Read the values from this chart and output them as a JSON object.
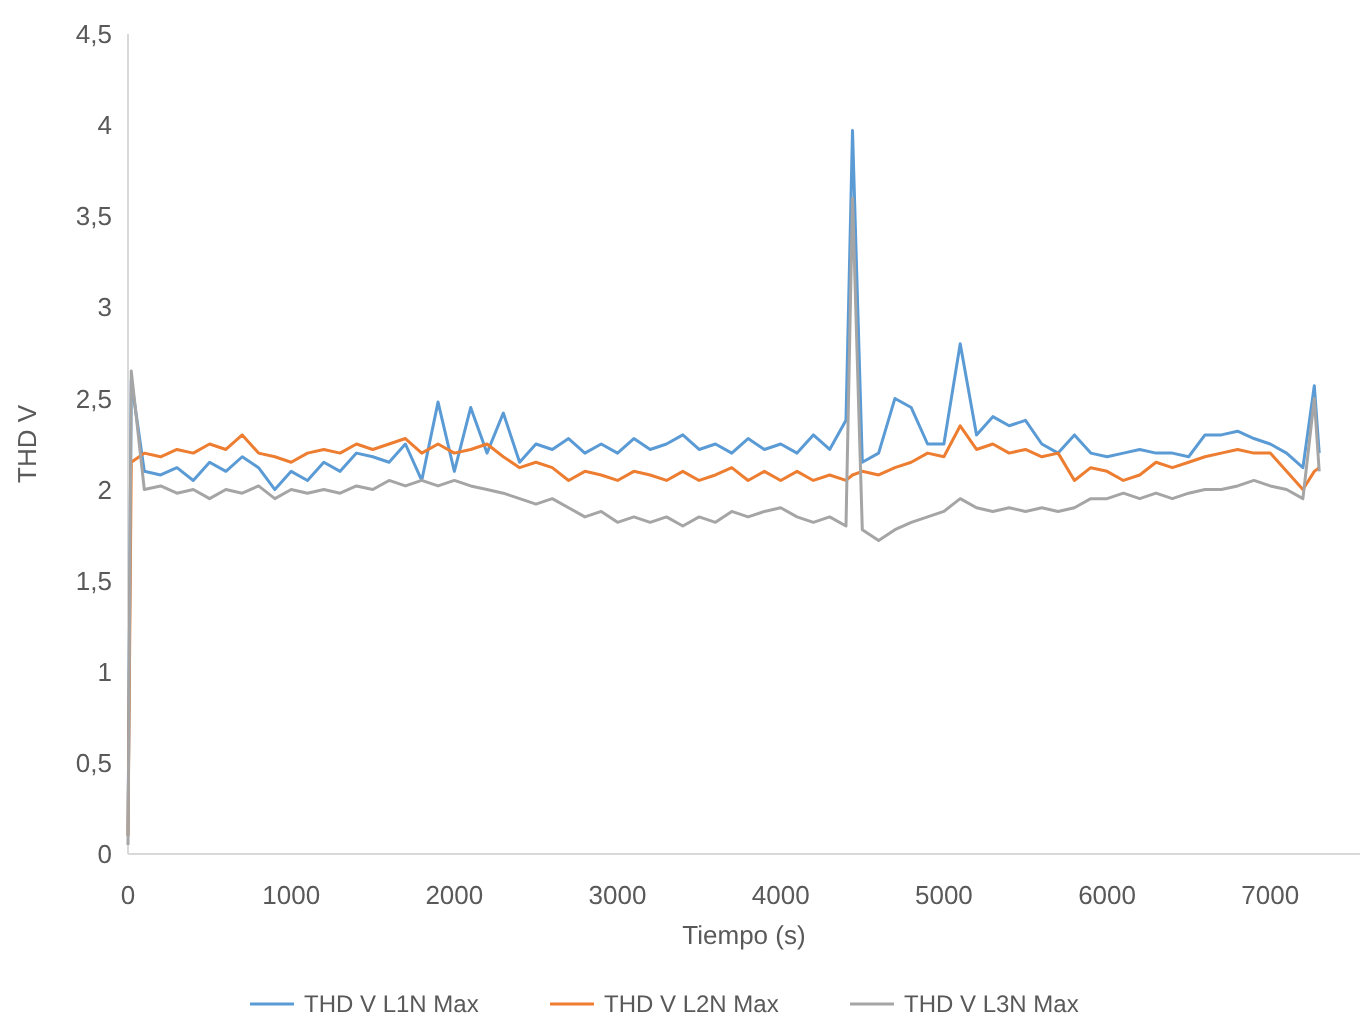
{
  "chart_data": {
    "type": "line",
    "xlabel": "Tiempo (s)",
    "ylabel": "THD V",
    "xlim": [
      0,
      7550
    ],
    "xticks": [
      0,
      1000,
      2000,
      3000,
      4000,
      5000,
      6000,
      7000
    ],
    "ylim": [
      0,
      4.5
    ],
    "yticks": [
      0,
      {
        "value": 0.5,
        "label": "0,5"
      },
      1,
      {
        "value": 1.5,
        "label": "1,5"
      },
      2,
      {
        "value": 2.5,
        "label": "2,5"
      },
      3,
      {
        "value": 3.5,
        "label": "3,5"
      },
      4,
      {
        "value": 4.5,
        "label": "4,5"
      }
    ],
    "grid": false,
    "legend": "bottom",
    "marker": "none",
    "line_style": "solid",
    "x": [
      0,
      20,
      100,
      200,
      300,
      400,
      500,
      600,
      700,
      800,
      900,
      1000,
      1100,
      1200,
      1300,
      1400,
      1500,
      1600,
      1700,
      1800,
      1900,
      2000,
      2100,
      2200,
      2300,
      2400,
      2500,
      2600,
      2700,
      2800,
      2900,
      3000,
      3100,
      3200,
      3300,
      3400,
      3500,
      3600,
      3700,
      3800,
      3900,
      4000,
      4100,
      4200,
      4300,
      4400,
      4440,
      4500,
      4600,
      4700,
      4800,
      4900,
      5000,
      5100,
      5200,
      5300,
      5400,
      5500,
      5600,
      5700,
      5800,
      5900,
      6000,
      6100,
      6200,
      6300,
      6400,
      6500,
      6600,
      6700,
      6800,
      6900,
      7000,
      7100,
      7200,
      7270,
      7300
    ],
    "series": [
      {
        "name": "THD V L1N Max",
        "color": "#5b9bd5",
        "values": [
          0.1,
          2.6,
          2.1,
          2.08,
          2.12,
          2.05,
          2.15,
          2.1,
          2.18,
          2.12,
          2.0,
          2.1,
          2.05,
          2.15,
          2.1,
          2.2,
          2.18,
          2.15,
          2.25,
          2.05,
          2.48,
          2.1,
          2.45,
          2.2,
          2.42,
          2.15,
          2.25,
          2.22,
          2.28,
          2.2,
          2.25,
          2.2,
          2.28,
          2.22,
          2.25,
          2.3,
          2.22,
          2.25,
          2.2,
          2.28,
          2.22,
          2.25,
          2.2,
          2.3,
          2.22,
          2.38,
          3.97,
          2.15,
          2.2,
          2.5,
          2.45,
          2.25,
          2.25,
          2.8,
          2.3,
          2.4,
          2.35,
          2.38,
          2.25,
          2.2,
          2.3,
          2.2,
          2.18,
          2.2,
          2.22,
          2.2,
          2.2,
          2.18,
          2.3,
          2.3,
          2.32,
          2.28,
          2.25,
          2.2,
          2.12,
          2.57,
          2.2
        ]
      },
      {
        "name": "THD V L2N Max",
        "color": "#ed7d31",
        "values": [
          0.1,
          2.15,
          2.2,
          2.18,
          2.22,
          2.2,
          2.25,
          2.22,
          2.3,
          2.2,
          2.18,
          2.15,
          2.2,
          2.22,
          2.2,
          2.25,
          2.22,
          2.25,
          2.28,
          2.2,
          2.25,
          2.2,
          2.22,
          2.25,
          2.18,
          2.12,
          2.15,
          2.12,
          2.05,
          2.1,
          2.08,
          2.05,
          2.1,
          2.08,
          2.05,
          2.1,
          2.05,
          2.08,
          2.12,
          2.05,
          2.1,
          2.05,
          2.1,
          2.05,
          2.08,
          2.05,
          2.08,
          2.1,
          2.08,
          2.12,
          2.15,
          2.2,
          2.18,
          2.35,
          2.22,
          2.25,
          2.2,
          2.22,
          2.18,
          2.2,
          2.05,
          2.12,
          2.1,
          2.05,
          2.08,
          2.15,
          2.12,
          2.15,
          2.18,
          2.2,
          2.22,
          2.2,
          2.2,
          2.1,
          2.0,
          2.1,
          2.12
        ]
      },
      {
        "name": "THD V L3N Max",
        "color": "#a5a5a5",
        "values": [
          0.05,
          2.65,
          2.0,
          2.02,
          1.98,
          2.0,
          1.95,
          2.0,
          1.98,
          2.02,
          1.95,
          2.0,
          1.98,
          2.0,
          1.98,
          2.02,
          2.0,
          2.05,
          2.02,
          2.05,
          2.02,
          2.05,
          2.02,
          2.0,
          1.98,
          1.95,
          1.92,
          1.95,
          1.9,
          1.85,
          1.88,
          1.82,
          1.85,
          1.82,
          1.85,
          1.8,
          1.85,
          1.82,
          1.88,
          1.85,
          1.88,
          1.9,
          1.85,
          1.82,
          1.85,
          1.8,
          3.6,
          1.78,
          1.72,
          1.78,
          1.82,
          1.85,
          1.88,
          1.95,
          1.9,
          1.88,
          1.9,
          1.88,
          1.9,
          1.88,
          1.9,
          1.95,
          1.95,
          1.98,
          1.95,
          1.98,
          1.95,
          1.98,
          2.0,
          2.0,
          2.02,
          2.05,
          2.02,
          2.0,
          1.95,
          2.5,
          2.1
        ]
      }
    ]
  }
}
